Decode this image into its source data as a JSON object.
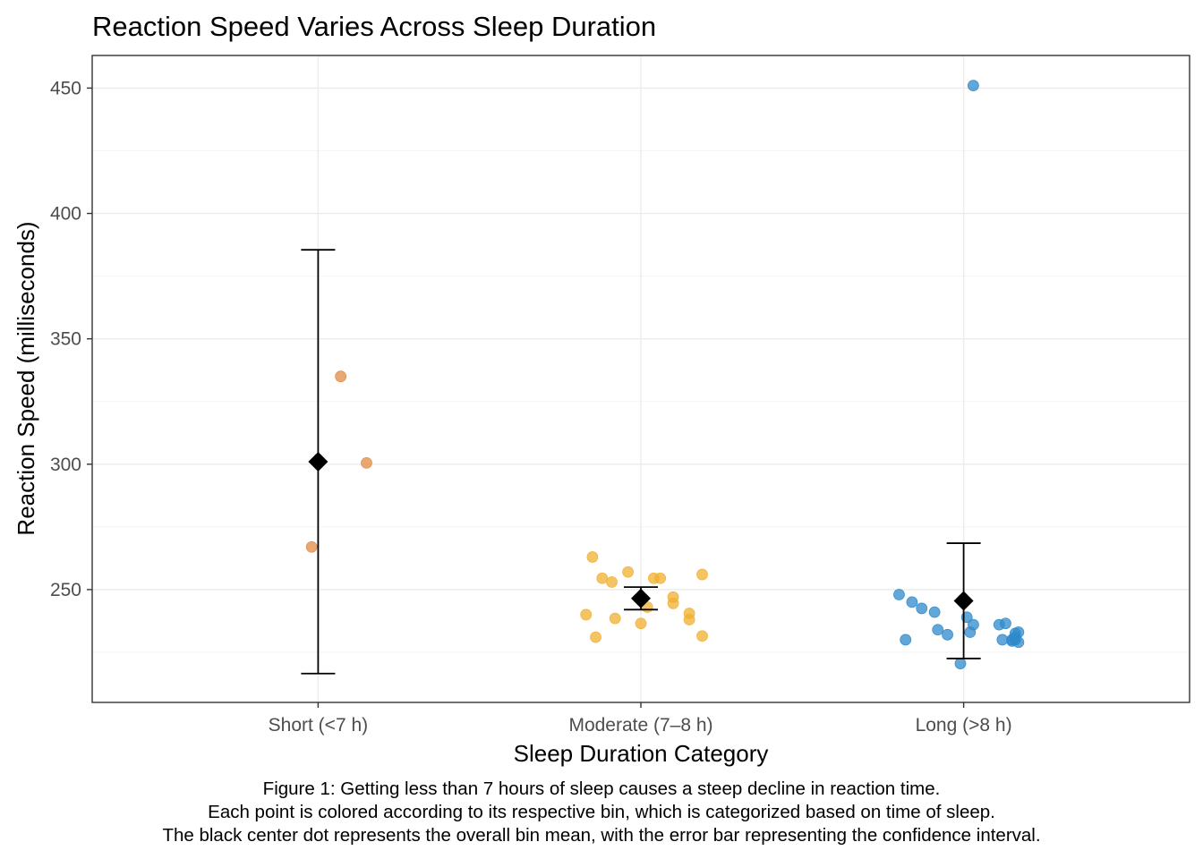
{
  "chart_data": {
    "type": "scatter",
    "title": "Reaction Speed Varies Across Sleep Duration",
    "xlabel": "Sleep Duration Category",
    "ylabel": "Reaction Speed (milliseconds)",
    "categories": [
      "Short (<7 h)",
      "Moderate (7–8 h)",
      "Long (>8 h)"
    ],
    "ylim": [
      205,
      463
    ],
    "yticks": [
      250,
      300,
      350,
      400,
      450
    ],
    "grid": true,
    "legend": "none",
    "series": [
      {
        "category": "Short (<7 h)",
        "color": "#E08B45",
        "points": [
          {
            "x": -0.02,
            "y": 267
          },
          {
            "x": 0.07,
            "y": 335
          },
          {
            "x": 0.15,
            "y": 300.5
          }
        ],
        "mean": 301,
        "ci": [
          216.5,
          385.5
        ]
      },
      {
        "category": "Moderate (7–8 h)",
        "color": "#F0B030",
        "points": [
          {
            "x": -0.17,
            "y": 240
          },
          {
            "x": -0.14,
            "y": 231
          },
          {
            "x": -0.15,
            "y": 263
          },
          {
            "x": -0.12,
            "y": 254.5
          },
          {
            "x": -0.09,
            "y": 253
          },
          {
            "x": -0.08,
            "y": 238.5
          },
          {
            "x": -0.04,
            "y": 257
          },
          {
            "x": 0.0,
            "y": 236.5
          },
          {
            "x": 0.02,
            "y": 243
          },
          {
            "x": 0.04,
            "y": 254.5
          },
          {
            "x": 0.06,
            "y": 254.5
          },
          {
            "x": 0.1,
            "y": 244.5
          },
          {
            "x": 0.1,
            "y": 247
          },
          {
            "x": 0.15,
            "y": 240.5
          },
          {
            "x": 0.15,
            "y": 238
          },
          {
            "x": 0.19,
            "y": 231.5
          },
          {
            "x": 0.19,
            "y": 256
          }
        ],
        "mean": 246.5,
        "ci": [
          242,
          251
        ]
      },
      {
        "category": "Long (>8 h)",
        "color": "#2F8ACB",
        "points": [
          {
            "x": -0.2,
            "y": 248
          },
          {
            "x": -0.18,
            "y": 230
          },
          {
            "x": -0.16,
            "y": 245
          },
          {
            "x": -0.13,
            "y": 242.5
          },
          {
            "x": -0.09,
            "y": 241
          },
          {
            "x": -0.08,
            "y": 234
          },
          {
            "x": -0.05,
            "y": 232
          },
          {
            "x": -0.01,
            "y": 220.5
          },
          {
            "x": 0.01,
            "y": 239
          },
          {
            "x": 0.02,
            "y": 233
          },
          {
            "x": 0.03,
            "y": 451
          },
          {
            "x": 0.03,
            "y": 236
          },
          {
            "x": 0.11,
            "y": 236
          },
          {
            "x": 0.12,
            "y": 230
          },
          {
            "x": 0.13,
            "y": 236.5
          },
          {
            "x": 0.15,
            "y": 230
          },
          {
            "x": 0.15,
            "y": 229.5
          },
          {
            "x": 0.16,
            "y": 232.5
          },
          {
            "x": 0.16,
            "y": 230
          },
          {
            "x": 0.16,
            "y": 231
          },
          {
            "x": 0.17,
            "y": 233
          },
          {
            "x": 0.17,
            "y": 229
          }
        ],
        "mean": 245.5,
        "ci": [
          222.5,
          268.5
        ]
      }
    ]
  },
  "caption": {
    "line1": "Figure 1: Getting less than 7 hours of sleep causes a steep decline in reaction time.",
    "line2": "Each point is colored according to its respective bin, which is categorized based on time of sleep.",
    "line3": "The black center dot represents the overall bin mean, with the error bar representing the confidence interval."
  }
}
